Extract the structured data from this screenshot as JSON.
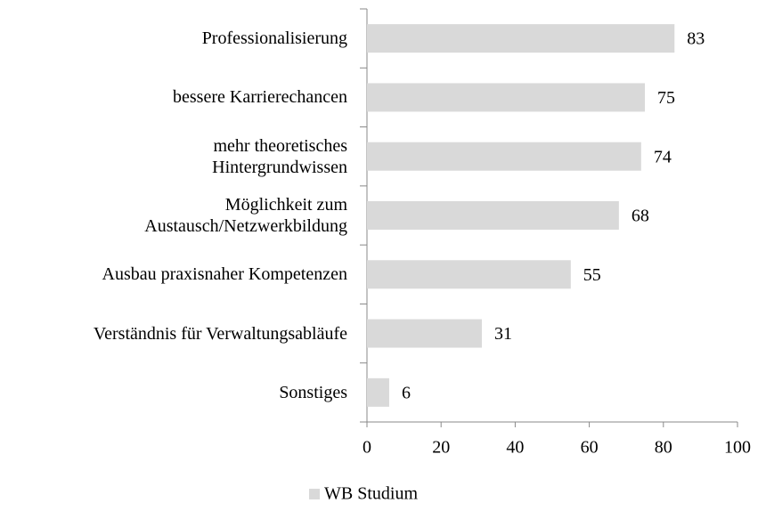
{
  "chart_data": {
    "type": "bar",
    "orientation": "horizontal",
    "categories": [
      "Professionalisierung",
      "bessere Karrierechancen",
      "mehr theoretisches\nHintergrundwissen",
      "Möglichkeit zum\nAustausch/Netzwerkbildung",
      "Ausbau praxisnaher Kompetenzen",
      "Verständnis für Verwaltungsabläufe",
      "Sonstiges"
    ],
    "series": [
      {
        "name": "WB Studium",
        "color": "#d9d9d9",
        "values": [
          83,
          75,
          74,
          68,
          55,
          31,
          6
        ]
      }
    ],
    "xlim": [
      0,
      100
    ],
    "xticks": [
      0,
      20,
      40,
      60,
      80,
      100
    ],
    "grid": false,
    "legend": "bottom"
  }
}
